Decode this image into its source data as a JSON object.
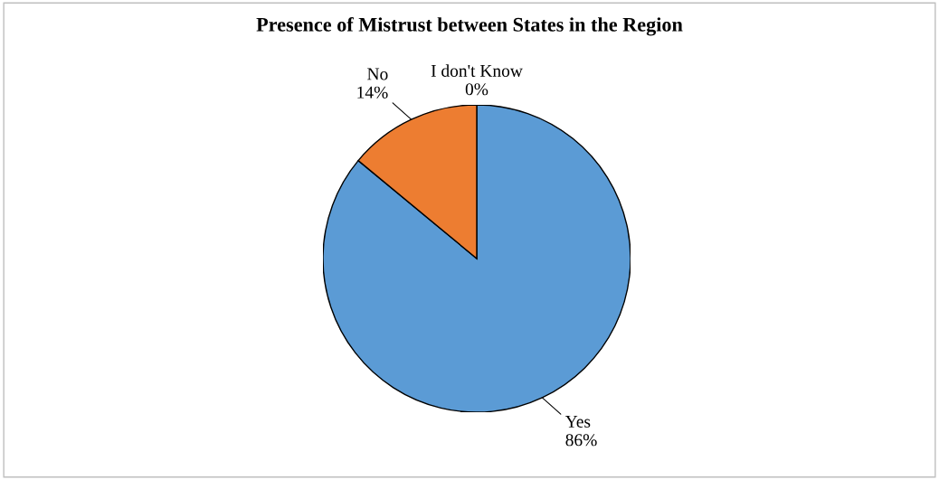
{
  "chart_data": {
    "type": "pie",
    "title": "Presence of Mistrust between States in the Region",
    "categories": [
      "Yes",
      "No",
      "I don't Know"
    ],
    "values": [
      86,
      14,
      0
    ],
    "colors": [
      "#5b9bd5",
      "#ed7d31",
      "#a5a5a5"
    ],
    "value_labels": [
      "86%",
      "14%",
      "0%"
    ],
    "legend": false
  }
}
